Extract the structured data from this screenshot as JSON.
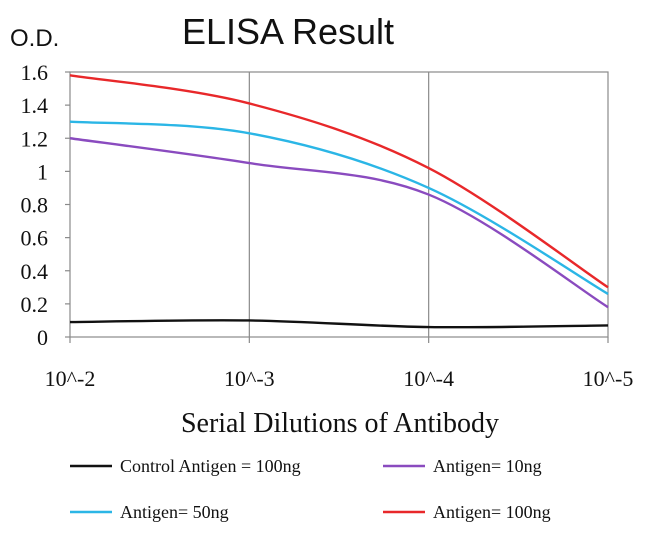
{
  "chart_data": {
    "type": "line",
    "title": "ELISA Result",
    "ylabel": "O.D.",
    "xlabel": "Serial Dilutions of Antibody",
    "categories": [
      "10^-2",
      "10^-3",
      "10^-4",
      "10^-5"
    ],
    "ylim": [
      0,
      1.6
    ],
    "yticks": [
      "0",
      "0.2",
      "0.4",
      "0.6",
      "0.8",
      "1",
      "1.2",
      "1.4",
      "1.6"
    ],
    "grid": "vertical",
    "legend": "bottom",
    "series": [
      {
        "name": "Control Antigen = 100ng",
        "color": "#111111",
        "values": [
          0.09,
          0.1,
          0.06,
          0.07
        ]
      },
      {
        "name": "Antigen= 10ng",
        "color": "#8a4bbf",
        "values": [
          1.2,
          1.05,
          0.86,
          0.18
        ]
      },
      {
        "name": "Antigen= 50ng",
        "color": "#2bb6e6",
        "values": [
          1.3,
          1.23,
          0.9,
          0.26
        ]
      },
      {
        "name": "Antigen= 100ng",
        "color": "#e8282a",
        "values": [
          1.58,
          1.41,
          1.02,
          0.3
        ]
      }
    ]
  }
}
